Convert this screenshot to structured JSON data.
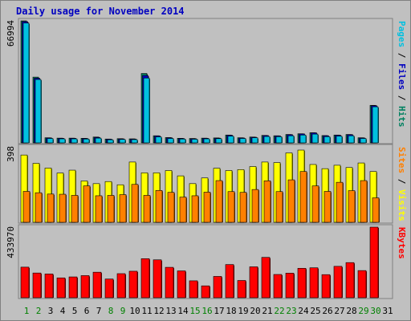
{
  "chart_data": {
    "type": "bar",
    "title": "Daily usage for November 2014",
    "categories": [
      "1",
      "2",
      "3",
      "4",
      "5",
      "6",
      "7",
      "8",
      "9",
      "10",
      "11",
      "12",
      "13",
      "14",
      "15",
      "16",
      "17",
      "18",
      "19",
      "20",
      "21",
      "22",
      "23",
      "24",
      "25",
      "26",
      "27",
      "28",
      "29",
      "30",
      "31"
    ],
    "weekend_days": [
      "1",
      "2",
      "8",
      "9",
      "15",
      "16",
      "22",
      "23",
      "29",
      "30"
    ],
    "panels": [
      {
        "id": "pages-files-hits",
        "ymax_label": "66994",
        "ymax": 66994,
        "legend": [
          {
            "text": "Pages",
            "color": "#00c0e0"
          },
          {
            "text": " / ",
            "color": "#000000"
          },
          {
            "text": "Files",
            "color": "#0000c0"
          },
          {
            "text": " / ",
            "color": "#000000"
          },
          {
            "text": "Hits",
            "color": "#008060"
          }
        ],
        "series": [
          {
            "name": "Hits",
            "color": "#008060",
            "values": [
              66994,
              36100,
              2800,
              2600,
              2600,
              2500,
              3200,
              2100,
              2300,
              2200,
              38100,
              3900,
              2900,
              2500,
              2400,
              2600,
              2700,
              4300,
              2800,
              3200,
              4100,
              3900,
              4600,
              5000,
              5600,
              4000,
              4300,
              4600,
              2800,
              20600,
              0
            ]
          },
          {
            "name": "Files",
            "color": "#0000c0",
            "values": [
              66600,
              35500,
              2700,
              2500,
              2500,
              2400,
              3000,
              2000,
              2200,
              2100,
              37000,
              3800,
              2800,
              2400,
              2300,
              2500,
              2600,
              4200,
              2700,
              3100,
              4000,
              3800,
              4500,
              4900,
              5500,
              3900,
              4200,
              4500,
              2700,
              20400,
              0
            ]
          },
          {
            "name": "Pages",
            "color": "#00c0e0",
            "values": [
              65800,
              34800,
              2400,
              2200,
              2200,
              2100,
              2600,
              1700,
              1900,
              1800,
              35600,
              3300,
              2400,
              2100,
              2000,
              2200,
              2300,
              3700,
              2400,
              2800,
              3500,
              3400,
              3900,
              4300,
              4800,
              3400,
              3700,
              3900,
              2400,
              19800,
              0
            ]
          }
        ]
      },
      {
        "id": "visits-sites",
        "ymax_label": "398",
        "ymax": 398,
        "legend": [
          {
            "text": "Sites",
            "color": "#ff8000"
          },
          {
            "text": " / ",
            "color": "#000000"
          },
          {
            "text": "Visits",
            "color": "#ffff00"
          }
        ],
        "series": [
          {
            "name": "Visits",
            "color": "#ffff00",
            "values": [
              355,
              311,
              286,
              260,
              275,
              218,
              204,
              215,
              198,
              318,
              261,
              261,
              273,
              245,
              204,
              234,
              285,
              273,
              278,
              294,
              318,
              315,
              366,
              381,
              305,
              283,
              301,
              289,
              313,
              268,
              0
            ]
          },
          {
            "name": "Sites",
            "color": "#ff8000",
            "values": [
              163,
              156,
              149,
              148,
              142,
              192,
              140,
              142,
              146,
              200,
              142,
              168,
              158,
              133,
              140,
              159,
              220,
              162,
              158,
              173,
              219,
              162,
              224,
              268,
              192,
              163,
              211,
              167,
              220,
              129,
              0
            ]
          }
        ]
      },
      {
        "id": "kbytes",
        "ymax_label": "433970",
        "ymax": 433970,
        "legend": [
          {
            "text": "KBytes",
            "color": "#ff0000"
          }
        ],
        "series": [
          {
            "name": "KBytes",
            "color": "#ff0000",
            "values": [
              188000,
              152000,
              146000,
              122000,
              128000,
              136000,
              157000,
              115000,
              148000,
              163000,
              240000,
              233000,
              187000,
              165000,
              104000,
              73000,
              131000,
              204000,
              106000,
              190000,
              248000,
              143000,
              151000,
              181000,
              184000,
              142000,
              193000,
              216000,
              167000,
              433970,
              0
            ]
          }
        ]
      }
    ]
  }
}
